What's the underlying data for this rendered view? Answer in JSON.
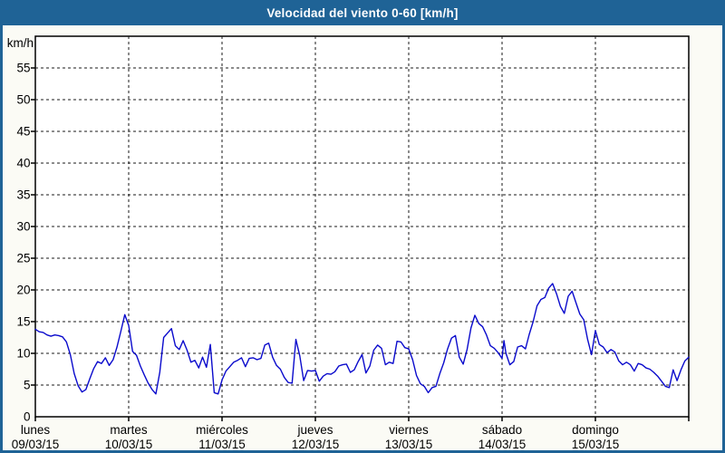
{
  "window": {
    "title": "Velocidad del viento 0-60 [km/h]",
    "frame_color": "#1f6396",
    "content_background": "#fbfbf5"
  },
  "chart_data": {
    "type": "line",
    "title": "Velocidad del viento 0-60 [km/h]",
    "unit_label": "km/h",
    "ylabel": "km/h",
    "xlabel": "",
    "ylim": [
      0,
      60
    ],
    "ytick_values": [
      0,
      5,
      10,
      15,
      20,
      25,
      30,
      35,
      40,
      45,
      50,
      55
    ],
    "grid": true,
    "plot_background": "#ffffff",
    "grid_color": "#1a1a1a",
    "axis_color": "#000000",
    "line_color": "#0a0acc",
    "x_unit": "hours_since_monday_00h",
    "x_range": [
      0,
      168
    ],
    "x_days": [
      {
        "name": "lunes",
        "date": "09/03/15"
      },
      {
        "name": "martes",
        "date": "10/03/15"
      },
      {
        "name": "miércoles",
        "date": "11/03/15"
      },
      {
        "name": "jueves",
        "date": "12/03/15"
      },
      {
        "name": "viernes",
        "date": "13/03/15"
      },
      {
        "name": "sábado",
        "date": "14/03/15"
      },
      {
        "name": "domingo",
        "date": "15/03/15"
      }
    ],
    "series": [
      {
        "name": "Velocidad del viento",
        "points": [
          [
            0,
            13.8
          ],
          [
            1,
            13.4
          ],
          [
            2,
            13.3
          ],
          [
            3,
            12.9
          ],
          [
            4,
            12.7
          ],
          [
            5,
            12.9
          ],
          [
            6,
            12.8
          ],
          [
            7,
            12.6
          ],
          [
            8,
            11.8
          ],
          [
            9,
            9.8
          ],
          [
            10,
            6.8
          ],
          [
            11,
            4.9
          ],
          [
            12,
            3.9
          ],
          [
            13,
            4.3
          ],
          [
            14,
            6.0
          ],
          [
            15,
            7.6
          ],
          [
            16,
            8.7
          ],
          [
            17,
            8.4
          ],
          [
            18,
            9.3
          ],
          [
            19,
            8.1
          ],
          [
            20,
            9.0
          ],
          [
            21,
            11.0
          ],
          [
            22,
            13.5
          ],
          [
            23,
            16.1
          ],
          [
            24,
            14.4
          ],
          [
            25,
            10.3
          ],
          [
            26,
            9.7
          ],
          [
            27,
            8.0
          ],
          [
            28,
            6.6
          ],
          [
            29,
            5.3
          ],
          [
            30,
            4.3
          ],
          [
            31,
            3.6
          ],
          [
            32,
            7.0
          ],
          [
            33,
            12.5
          ],
          [
            34,
            13.2
          ],
          [
            35,
            13.9
          ],
          [
            36,
            11.2
          ],
          [
            37,
            10.6
          ],
          [
            38,
            12.0
          ],
          [
            39,
            10.5
          ],
          [
            40,
            8.6
          ],
          [
            41,
            8.9
          ],
          [
            42,
            7.7
          ],
          [
            43,
            9.4
          ],
          [
            44,
            7.8
          ],
          [
            45,
            11.4
          ],
          [
            46,
            3.8
          ],
          [
            47,
            3.6
          ],
          [
            48,
            5.8
          ],
          [
            49,
            7.2
          ],
          [
            50,
            7.9
          ],
          [
            51,
            8.6
          ],
          [
            52,
            8.9
          ],
          [
            53,
            9.3
          ],
          [
            54,
            7.9
          ],
          [
            55,
            9.2
          ],
          [
            56,
            9.3
          ],
          [
            57,
            9.0
          ],
          [
            58,
            9.2
          ],
          [
            59,
            11.3
          ],
          [
            60,
            11.6
          ],
          [
            61,
            9.4
          ],
          [
            62,
            8.1
          ],
          [
            63,
            7.5
          ],
          [
            64,
            6.2
          ],
          [
            65,
            5.4
          ],
          [
            66,
            5.3
          ],
          [
            67,
            12.2
          ],
          [
            68,
            9.6
          ],
          [
            69,
            5.7
          ],
          [
            70,
            7.3
          ],
          [
            71,
            7.2
          ],
          [
            72,
            7.3
          ],
          [
            73,
            5.6
          ],
          [
            74,
            6.4
          ],
          [
            75,
            6.8
          ],
          [
            76,
            6.7
          ],
          [
            77,
            7.1
          ],
          [
            78,
            8.0
          ],
          [
            79,
            8.2
          ],
          [
            80,
            8.3
          ],
          [
            81,
            7.0
          ],
          [
            82,
            7.4
          ],
          [
            83,
            8.7
          ],
          [
            84,
            9.8
          ],
          [
            85,
            6.9
          ],
          [
            86,
            8.0
          ],
          [
            87,
            10.5
          ],
          [
            88,
            11.3
          ],
          [
            89,
            10.8
          ],
          [
            90,
            8.2
          ],
          [
            91,
            8.6
          ],
          [
            92,
            8.4
          ],
          [
            93,
            11.9
          ],
          [
            94,
            11.8
          ],
          [
            95,
            10.9
          ],
          [
            96,
            10.7
          ],
          [
            97,
            9.0
          ],
          [
            98,
            6.5
          ],
          [
            99,
            5.2
          ],
          [
            100,
            4.8
          ],
          [
            101,
            3.8
          ],
          [
            102,
            4.6
          ],
          [
            103,
            4.8
          ],
          [
            104,
            6.8
          ],
          [
            105,
            8.5
          ],
          [
            106,
            10.7
          ],
          [
            107,
            12.4
          ],
          [
            108,
            12.8
          ],
          [
            109,
            9.4
          ],
          [
            110,
            8.3
          ],
          [
            111,
            10.6
          ],
          [
            112,
            14.0
          ],
          [
            113,
            16.0
          ],
          [
            114,
            14.7
          ],
          [
            115,
            14.2
          ],
          [
            116,
            12.9
          ],
          [
            117,
            11.2
          ],
          [
            118,
            10.8
          ],
          [
            119,
            10.1
          ],
          [
            120,
            9.2
          ],
          [
            120.5,
            12.0
          ],
          [
            121,
            10.0
          ],
          [
            122,
            8.2
          ],
          [
            123,
            8.7
          ],
          [
            124,
            11.0
          ],
          [
            125,
            11.2
          ],
          [
            126,
            10.7
          ],
          [
            127,
            13.0
          ],
          [
            128,
            15.0
          ],
          [
            129,
            17.5
          ],
          [
            130,
            18.5
          ],
          [
            131,
            18.8
          ],
          [
            132,
            20.3
          ],
          [
            133,
            21.0
          ],
          [
            134,
            19.4
          ],
          [
            135,
            17.4
          ],
          [
            136,
            16.3
          ],
          [
            137,
            19.0
          ],
          [
            138,
            19.8
          ],
          [
            139,
            18.0
          ],
          [
            140,
            16.2
          ],
          [
            141,
            15.3
          ],
          [
            142,
            12.2
          ],
          [
            143,
            9.8
          ],
          [
            144,
            13.6
          ],
          [
            145,
            11.4
          ],
          [
            146,
            11.0
          ],
          [
            147,
            10.1
          ],
          [
            148,
            10.6
          ],
          [
            149,
            10.2
          ],
          [
            150,
            8.8
          ],
          [
            151,
            8.2
          ],
          [
            152,
            8.6
          ],
          [
            153,
            8.2
          ],
          [
            154,
            7.2
          ],
          [
            155,
            8.4
          ],
          [
            156,
            8.2
          ],
          [
            157,
            7.7
          ],
          [
            158,
            7.5
          ],
          [
            159,
            7.0
          ],
          [
            160,
            6.4
          ],
          [
            161,
            5.6
          ],
          [
            162,
            4.8
          ],
          [
            163,
            4.6
          ],
          [
            164,
            7.4
          ],
          [
            165,
            5.7
          ],
          [
            166,
            7.4
          ],
          [
            167,
            8.8
          ],
          [
            168,
            9.4
          ]
        ]
      }
    ]
  }
}
